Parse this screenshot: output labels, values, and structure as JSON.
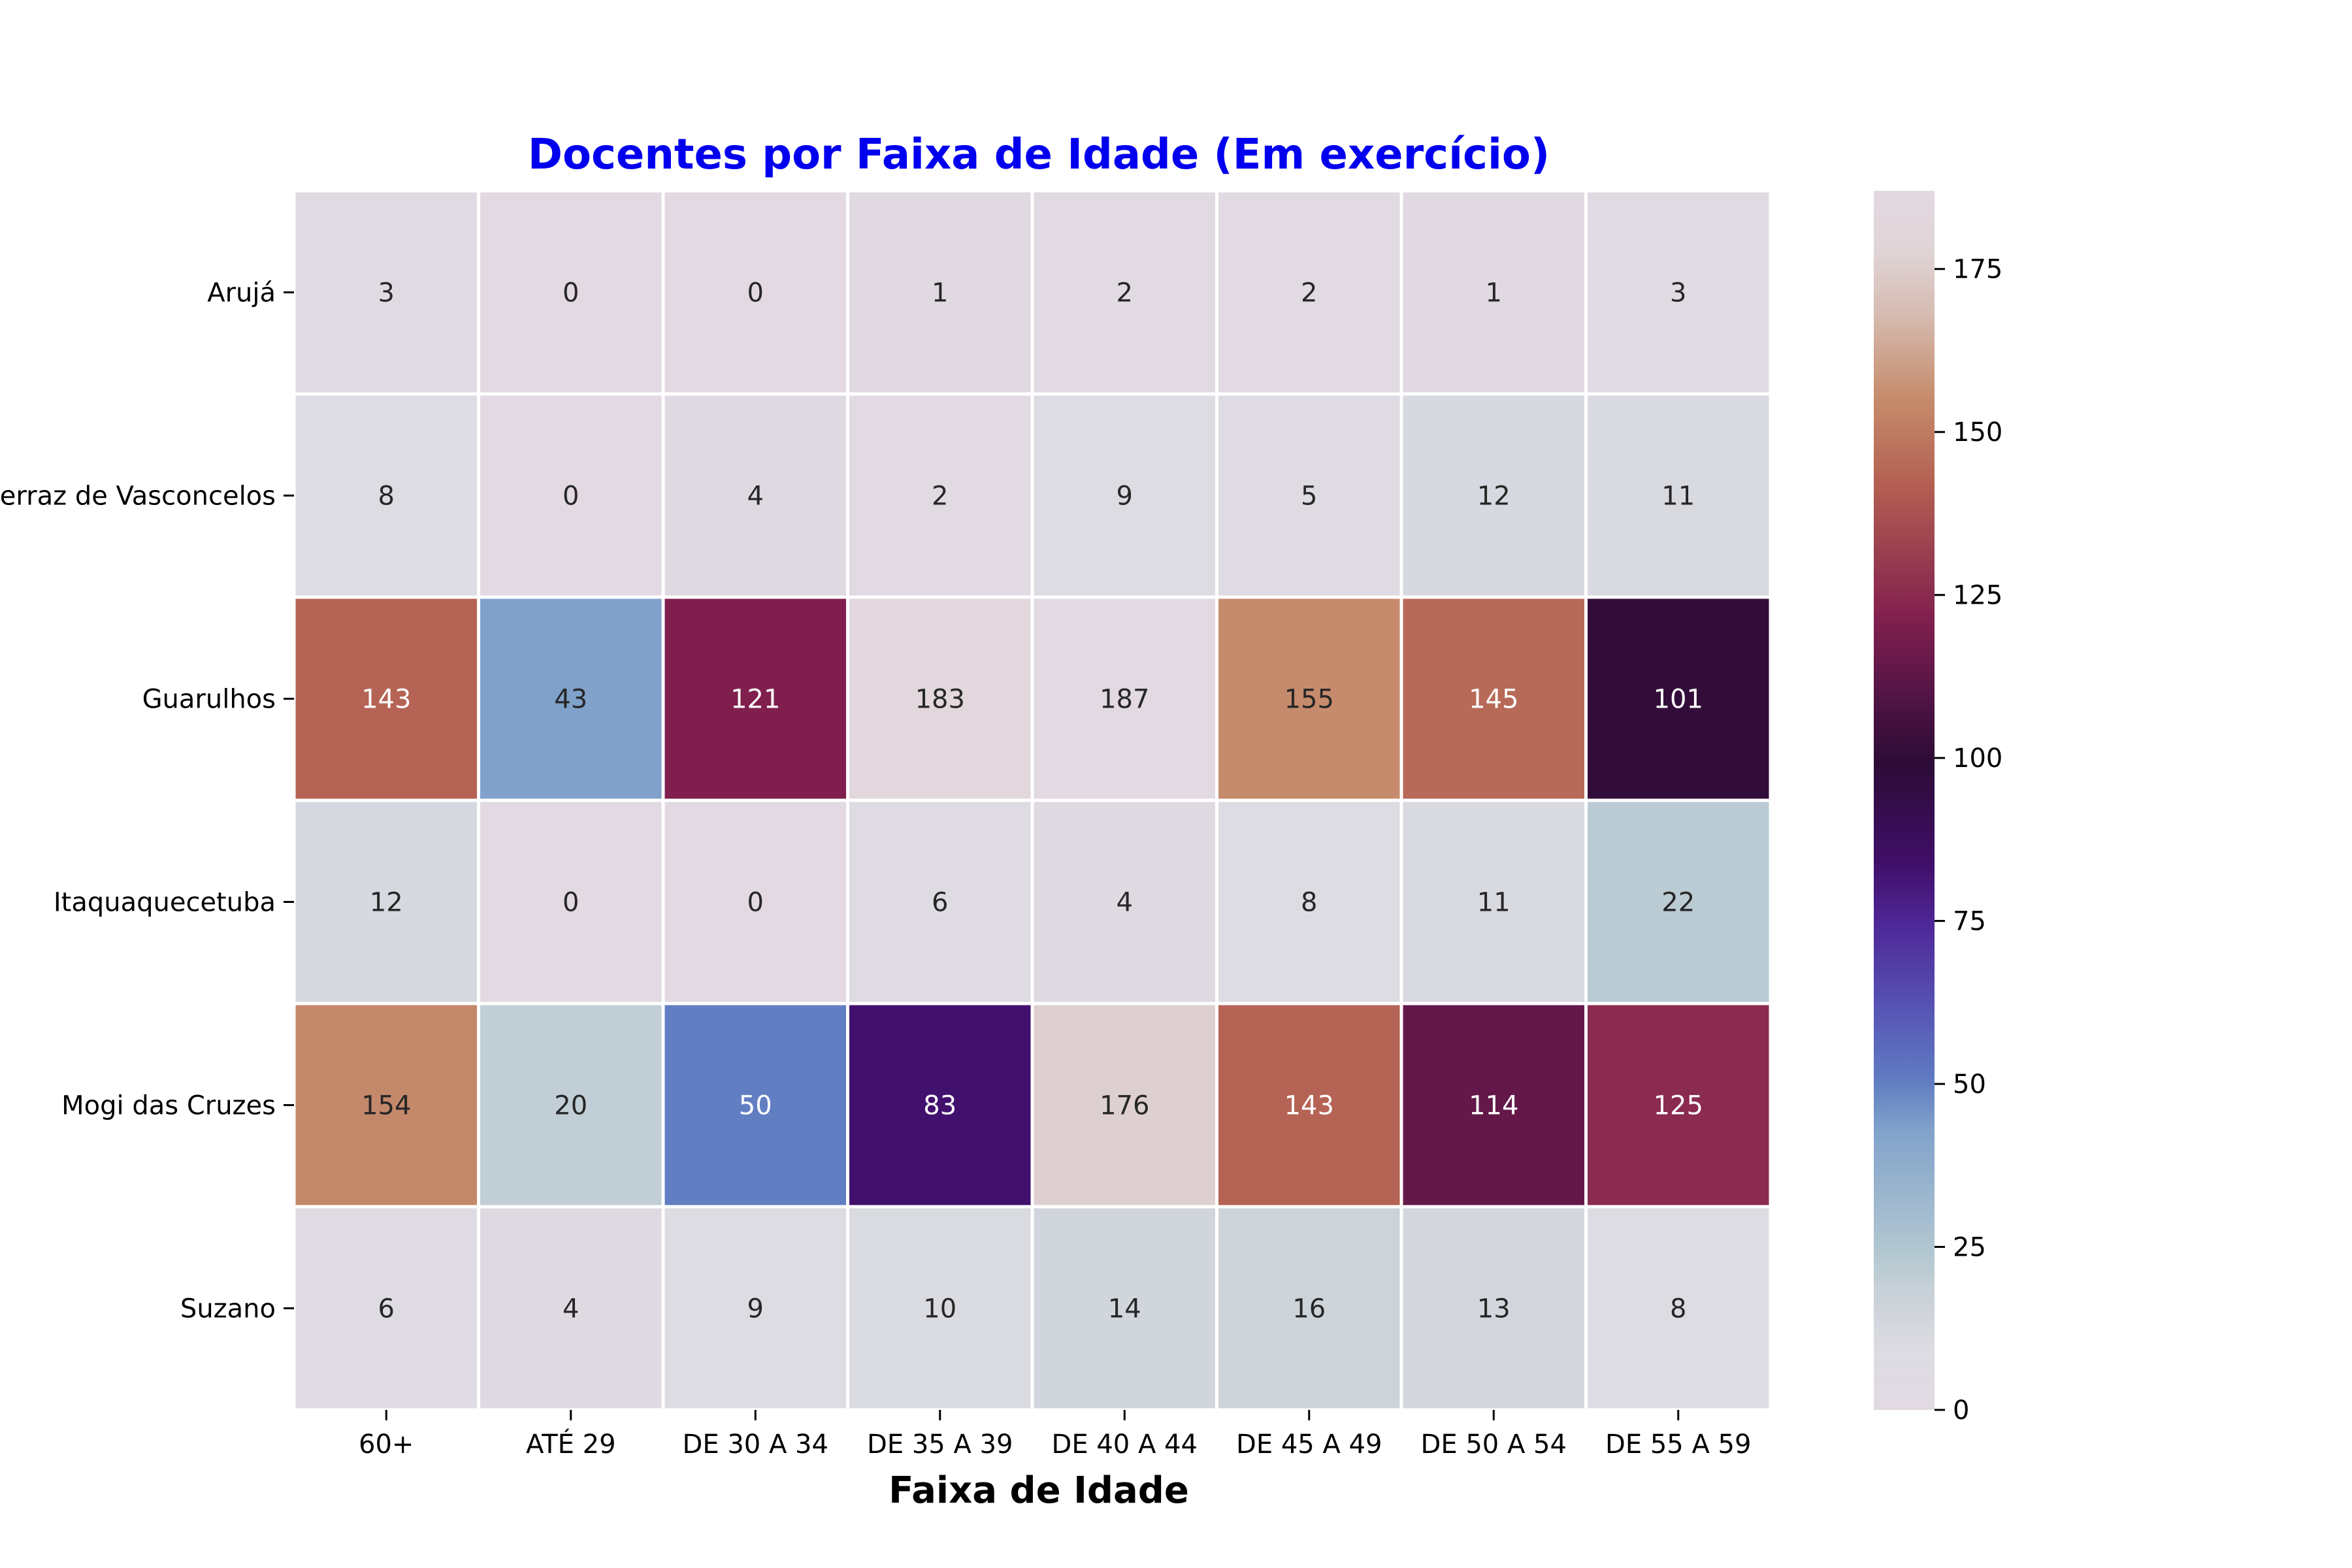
{
  "chart_data": {
    "type": "heatmap",
    "title": "Docentes por Faixa de Idade (Em exercício)",
    "title_color": "#0000ee",
    "xlabel": "Faixa de Idade",
    "ylabel": "",
    "x_categories": [
      "60+",
      "ATÉ 29",
      "DE 30 A 34",
      "DE 35 A 39",
      "DE 40 A 44",
      "DE 45 A 49",
      "DE 50 A 54",
      "DE 55 A 59"
    ],
    "y_categories": [
      "Arujá",
      "Ferraz de Vasconcelos",
      "Guarulhos",
      "Itaquaquecetuba",
      "Mogi das Cruzes",
      "Suzano"
    ],
    "values": [
      [
        3,
        0,
        0,
        1,
        2,
        2,
        1,
        3
      ],
      [
        8,
        0,
        4,
        2,
        9,
        5,
        12,
        11
      ],
      [
        143,
        43,
        121,
        183,
        187,
        155,
        145,
        101
      ],
      [
        12,
        0,
        0,
        6,
        4,
        8,
        11,
        22
      ],
      [
        154,
        20,
        50,
        83,
        176,
        143,
        114,
        125
      ],
      [
        6,
        4,
        9,
        10,
        14,
        16,
        13,
        8
      ]
    ],
    "colorbar": {
      "range": [
        0,
        187
      ],
      "ticks": [
        0,
        25,
        50,
        75,
        100,
        125,
        150,
        175
      ],
      "colormap": "twilight"
    },
    "grid_line_color": "#ffffff"
  }
}
